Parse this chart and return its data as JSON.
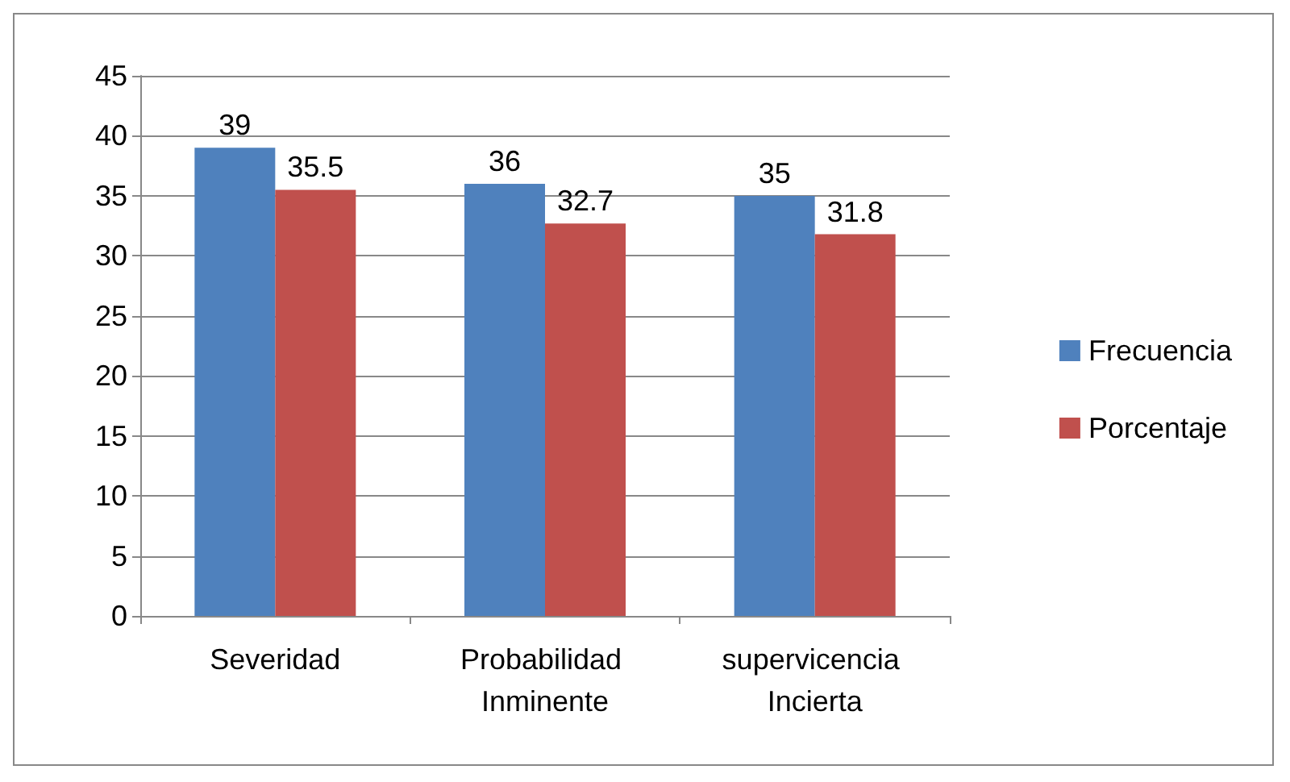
{
  "chart_data": {
    "type": "bar",
    "categories": [
      "Severidad",
      "Probabilidad Inminente",
      "supervicencia Incierta"
    ],
    "series": [
      {
        "name": "Frecuencia",
        "color": "#4f81bd",
        "values": [
          39,
          36,
          35
        ]
      },
      {
        "name": "Porcentaje",
        "color": "#c0504d",
        "values": [
          35.5,
          32.7,
          31.8
        ]
      }
    ],
    "ylim": [
      0,
      45
    ],
    "yticks": [
      0,
      5,
      10,
      15,
      20,
      25,
      30,
      35,
      40,
      45
    ],
    "grid": "y",
    "legend": "right",
    "data_labels": true
  }
}
